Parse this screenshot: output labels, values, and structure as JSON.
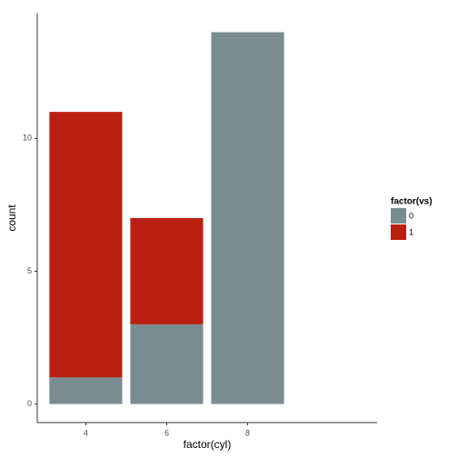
{
  "chart_data": {
    "type": "stacked-bar",
    "x_label": "factor(cyl)",
    "y_label": "count",
    "categories": [
      "4",
      "6",
      "8"
    ],
    "series": [
      {
        "name": "0",
        "color": "#7a8c92",
        "values": [
          1,
          3,
          14
        ]
      },
      {
        "name": "1",
        "color": "#bb1f11",
        "values": [
          10,
          4,
          0
        ]
      }
    ],
    "legend_title": "factor(vs)",
    "legend_position": "right",
    "ylim": [
      -0.7,
      14.7
    ],
    "yticks": [
      0,
      5,
      10
    ],
    "grid": false
  }
}
